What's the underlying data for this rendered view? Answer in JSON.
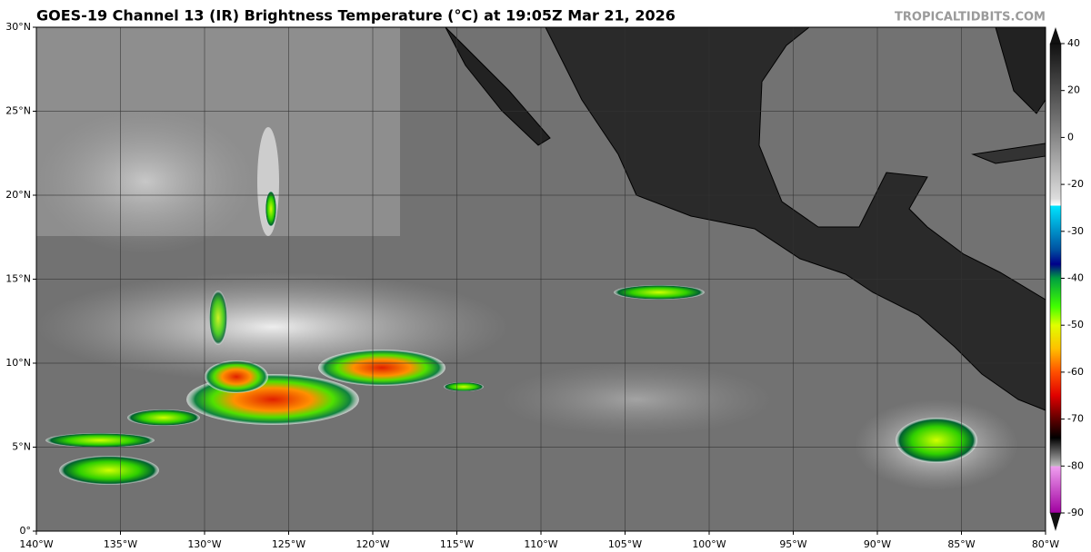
{
  "header": {
    "title": "GOES-19 Channel 13 (IR) Brightness Temperature (°C) at 19:05Z Mar 21, 2026",
    "credit": "TROPICALTIDBITS.COM"
  },
  "map": {
    "lat_labels": [
      "30°N",
      "25°N",
      "20°N",
      "15°N",
      "10°N",
      "5°N",
      "0°"
    ],
    "lon_labels": [
      "140°W",
      "135°W",
      "130°W",
      "125°W",
      "120°W",
      "115°W",
      "110°W",
      "105°W",
      "100°W",
      "95°W",
      "90°W",
      "85°W",
      "80°W"
    ]
  },
  "colorbar": {
    "tick_labels": [
      "40",
      "20",
      "0",
      "-20",
      "-30",
      "-40",
      "-50",
      "-60",
      "-70",
      "-80",
      "-90"
    ]
  }
}
